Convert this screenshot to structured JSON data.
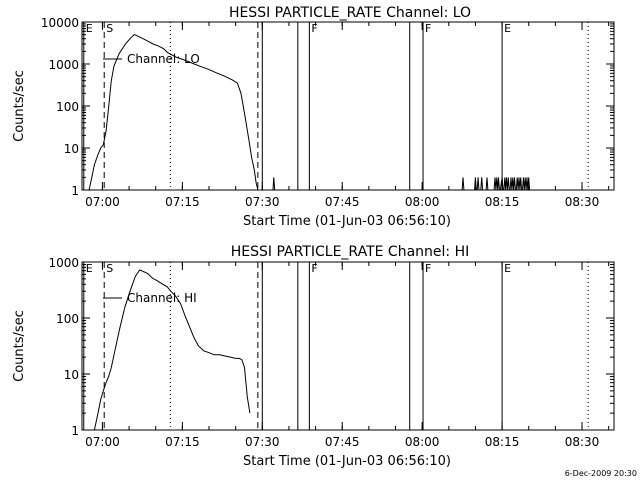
{
  "footer_stamp": "6-Dec-2009 20:30",
  "chart_data": [
    {
      "type": "line",
      "title": "HESSI PARTICLE_RATE Channel: LO",
      "xlabel": "Start Time (01-Jun-03 06:56:10)",
      "ylabel": "Counts/sec",
      "y_scale": "log",
      "xlim": [
        "06:56:10",
        "08:36:00"
      ],
      "ylim": [
        1,
        10000
      ],
      "x_ticks": [
        "07:00",
        "07:15",
        "07:30",
        "07:45",
        "08:00",
        "08:15",
        "08:30"
      ],
      "y_ticks": [
        "1",
        "10",
        "100",
        "1000",
        "10000"
      ],
      "legend": "Channel: LO",
      "legend_position": "top-left",
      "markers": [
        {
          "label": "E",
          "time": "06:56:30",
          "style": "solid"
        },
        {
          "label": "S",
          "time": "07:00:20",
          "style": "dashed"
        },
        {
          "label": "",
          "time": "07:12:45",
          "style": "dotted"
        },
        {
          "label": "",
          "time": "07:29:10",
          "style": "dashed"
        },
        {
          "label": "",
          "time": "07:30:00",
          "style": "solid"
        },
        {
          "label": "",
          "time": "07:36:40",
          "style": "solid"
        },
        {
          "label": "F",
          "time": "07:38:50",
          "style": "solid"
        },
        {
          "label": "",
          "time": "07:57:40",
          "style": "solid"
        },
        {
          "label": "F",
          "time": "08:00:10",
          "style": "solid"
        },
        {
          "label": "E",
          "time": "08:15:00",
          "style": "solid"
        },
        {
          "label": "",
          "time": "08:31:10",
          "style": "dotted"
        }
      ],
      "series": [
        {
          "name": "Channel: LO",
          "x": [
            "06:57:30",
            "06:58:00",
            "06:58:30",
            "06:59:10",
            "06:59:40",
            "07:00:10",
            "07:00:40",
            "07:01:00",
            "07:01:20",
            "07:01:40",
            "07:02:10",
            "07:03:10",
            "07:04:20",
            "07:05:20",
            "07:06:00",
            "07:06:40",
            "07:07:30",
            "07:08:30",
            "07:09:30",
            "07:10:30",
            "07:11:30",
            "07:12:10",
            "07:12:50",
            "07:13:50",
            "07:15:20",
            "07:16:50",
            "07:18:20",
            "07:19:50",
            "07:21:20",
            "07:22:50",
            "07:24:20",
            "07:25:20",
            "07:26:00",
            "07:26:50",
            "07:27:30",
            "07:28:00",
            "07:28:30",
            "07:28:50",
            "07:29:10"
          ],
          "values": [
            1,
            2,
            4,
            7,
            10,
            12,
            25,
            60,
            150,
            400,
            900,
            1800,
            3000,
            4200,
            5000,
            4600,
            4100,
            3500,
            3000,
            2700,
            2300,
            1900,
            1700,
            1450,
            1250,
            1050,
            880,
            750,
            620,
            520,
            420,
            350,
            200,
            50,
            15,
            6,
            3,
            1.5,
            1
          ]
        },
        {
          "name": "",
          "x": [
            "07:32:00",
            "07:32:10",
            "07:32:20",
            "08:07:30",
            "08:07:40",
            "08:07:50",
            "08:09:50",
            "08:10:00",
            "08:10:10",
            "08:10:20",
            "08:10:30",
            "08:10:40",
            "08:11:00",
            "08:11:10",
            "08:11:20",
            "08:12:00",
            "08:12:10",
            "08:12:20",
            "08:13:30",
            "08:13:40",
            "08:13:50",
            "08:14:00",
            "08:14:10",
            "08:14:20",
            "08:14:30",
            "08:14:40",
            "08:15:00",
            "08:15:10",
            "08:15:20",
            "08:15:30",
            "08:15:40",
            "08:15:50",
            "08:16:00",
            "08:16:10",
            "08:16:20",
            "08:16:30",
            "08:16:40",
            "08:16:50",
            "08:17:00",
            "08:17:10",
            "08:17:20",
            "08:17:30",
            "08:17:40",
            "08:17:50",
            "08:18:00",
            "08:18:10",
            "08:18:20",
            "08:18:30",
            "08:18:40",
            "08:18:50",
            "08:19:00",
            "08:19:10",
            "08:19:20",
            "08:19:30",
            "08:19:40",
            "08:19:50",
            "08:20:00",
            "08:20:10",
            "08:20:20"
          ],
          "values": [
            1,
            2,
            1,
            1,
            2,
            1,
            1,
            2,
            1,
            1,
            2,
            1,
            1,
            2,
            1,
            1,
            2,
            1,
            1,
            2,
            1,
            2,
            1,
            2,
            1,
            1,
            2,
            1,
            1,
            2,
            1,
            2,
            1,
            2,
            1,
            1,
            2,
            1,
            2,
            1,
            2,
            1,
            1,
            2,
            1,
            2,
            1,
            2,
            1,
            1,
            2,
            1,
            2,
            1,
            2,
            1,
            2,
            1,
            1
          ]
        }
      ]
    },
    {
      "type": "line",
      "title": "HESSI PARTICLE_RATE Channel: HI",
      "xlabel": "Start Time (01-Jun-03 06:56:10)",
      "ylabel": "Counts/sec",
      "y_scale": "log",
      "xlim": [
        "06:56:10",
        "08:36:00"
      ],
      "ylim": [
        1,
        1000
      ],
      "x_ticks": [
        "07:00",
        "07:15",
        "07:30",
        "07:45",
        "08:00",
        "08:15",
        "08:30"
      ],
      "y_ticks": [
        "1",
        "10",
        "100",
        "1000"
      ],
      "legend": "Channel: HI",
      "legend_position": "top-left",
      "markers": [
        {
          "label": "E",
          "time": "06:56:30",
          "style": "solid"
        },
        {
          "label": "S",
          "time": "07:00:20",
          "style": "dashed"
        },
        {
          "label": "",
          "time": "07:12:45",
          "style": "dotted"
        },
        {
          "label": "",
          "time": "07:29:10",
          "style": "dashed"
        },
        {
          "label": "",
          "time": "07:30:00",
          "style": "solid"
        },
        {
          "label": "",
          "time": "07:36:40",
          "style": "solid"
        },
        {
          "label": "F",
          "time": "07:38:50",
          "style": "solid"
        },
        {
          "label": "",
          "time": "07:57:40",
          "style": "solid"
        },
        {
          "label": "F",
          "time": "08:00:10",
          "style": "solid"
        },
        {
          "label": "E",
          "time": "08:15:00",
          "style": "solid"
        },
        {
          "label": "",
          "time": "08:31:10",
          "style": "dotted"
        }
      ],
      "series": [
        {
          "name": "Channel: HI",
          "x": [
            "06:58:30",
            "06:59:10",
            "06:59:40",
            "07:00:10",
            "07:00:40",
            "07:01:10",
            "07:01:40",
            "07:02:10",
            "07:03:10",
            "07:04:10",
            "07:05:10",
            "07:06:10",
            "07:07:00",
            "07:07:40",
            "07:08:30",
            "07:09:20",
            "07:10:20",
            "07:11:20",
            "07:12:10",
            "07:12:50",
            "07:13:40",
            "07:14:40",
            "07:15:30",
            "07:16:20",
            "07:17:10",
            "07:18:00",
            "07:19:00",
            "07:20:00",
            "07:21:00",
            "07:22:00",
            "07:23:00",
            "07:24:00",
            "07:25:00",
            "07:25:40",
            "07:26:10",
            "07:26:40",
            "07:27:10",
            "07:27:40"
          ],
          "values": [
            1,
            2,
            3.5,
            5,
            7,
            9,
            13,
            22,
            60,
            150,
            300,
            550,
            720,
            680,
            620,
            520,
            460,
            400,
            360,
            300,
            250,
            180,
            110,
            70,
            45,
            32,
            26,
            24,
            22,
            22,
            21,
            20,
            19,
            19,
            18,
            13,
            4,
            2
          ]
        }
      ]
    }
  ]
}
